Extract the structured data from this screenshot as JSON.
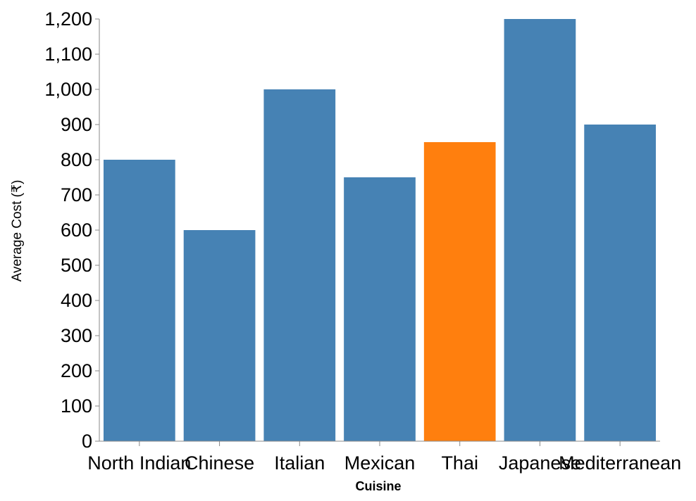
{
  "chart_data": {
    "type": "bar",
    "categories": [
      "North Indian",
      "Chinese",
      "Italian",
      "Mexican",
      "Thai",
      "Japanese",
      "Mediterranean"
    ],
    "values": [
      800,
      600,
      1000,
      750,
      850,
      1200,
      900
    ],
    "highlight_category": "Thai",
    "xlabel": "Cuisine",
    "ylabel": "Average Cost (₹)",
    "ylim": [
      0,
      1200
    ],
    "yticks": [
      0,
      100,
      200,
      300,
      400,
      500,
      600,
      700,
      800,
      900,
      1000,
      1100,
      1200
    ],
    "grid": false,
    "colors": {
      "bar": "#4682b4",
      "highlight": "#ff7f0e",
      "axis": "#888888"
    }
  }
}
